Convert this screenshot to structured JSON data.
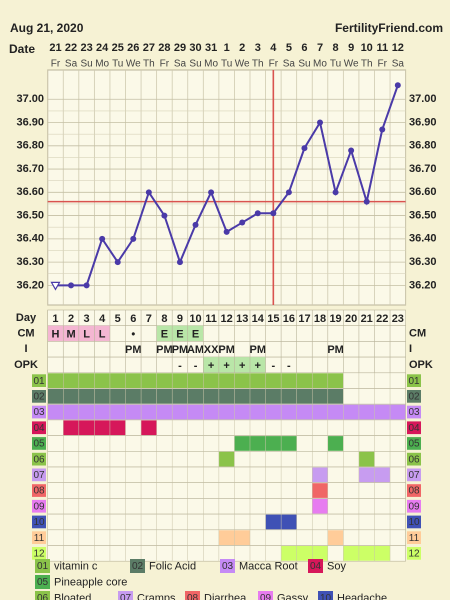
{
  "header": {
    "date": "Aug 21, 2020",
    "site": "FertilityFriend.com",
    "date_label": "Date"
  },
  "chart_data": {
    "type": "line",
    "categories": [
      "21",
      "22",
      "23",
      "24",
      "25",
      "26",
      "27",
      "28",
      "29",
      "30",
      "31",
      "1",
      "2",
      "3",
      "4",
      "5",
      "6",
      "7",
      "8",
      "9",
      "10",
      "11",
      "12"
    ],
    "weekdays": [
      "Fr",
      "Sa",
      "Su",
      "Mo",
      "Tu",
      "We",
      "Th",
      "Fr",
      "Sa",
      "Su",
      "Mo",
      "Tu",
      "We",
      "Th",
      "Fr",
      "Sa",
      "Su",
      "Mo",
      "Tu",
      "We",
      "Th",
      "Fr",
      "Sa"
    ],
    "values": [
      36.2,
      36.2,
      36.2,
      36.4,
      36.3,
      36.4,
      36.6,
      36.5,
      36.3,
      36.46,
      36.6,
      36.43,
      36.47,
      36.51,
      36.51,
      36.6,
      36.79,
      36.9,
      36.6,
      36.78,
      36.56,
      36.87,
      37.06
    ],
    "color": "#4a3aa8",
    "coverline": 36.56,
    "coverline_color": "#d9534f",
    "ovulation_day": 15,
    "ylim": [
      36.15,
      37.1
    ],
    "yticks": [
      {
        "value": 36.2,
        "label": "36.20"
      },
      {
        "value": 36.3,
        "label": "36.30"
      },
      {
        "value": 36.4,
        "label": "36.40"
      },
      {
        "value": 36.5,
        "label": "36.50"
      },
      {
        "value": 36.6,
        "label": "36.60"
      },
      {
        "value": 36.7,
        "label": "36.70"
      },
      {
        "value": 36.8,
        "label": "36.80"
      },
      {
        "value": 36.9,
        "label": "36.90"
      },
      {
        "value": 37,
        "label": "37.00"
      }
    ],
    "grid": true
  },
  "table": {
    "row_labels": {
      "day": "Day",
      "cm": "CM",
      "i": "I",
      "opk": "OPK"
    },
    "days": [
      1,
      2,
      3,
      4,
      5,
      6,
      7,
      8,
      9,
      10,
      11,
      12,
      13,
      14,
      15,
      16,
      17,
      18,
      19,
      20,
      21,
      22,
      23
    ],
    "cm": [
      "H",
      "M",
      "L",
      "L",
      null,
      "•",
      null,
      "E",
      "E",
      "E",
      null,
      null,
      null,
      null,
      null,
      null,
      null,
      null,
      null,
      null,
      null,
      null,
      null
    ],
    "cm_colors": {
      "H": "#f4b6d2",
      "M": "#f4b6d2",
      "L": "#f4b6d2",
      "E": "#b9e6a8"
    },
    "i": [
      null,
      null,
      null,
      null,
      null,
      "PM",
      null,
      "PM",
      "PM",
      "AM",
      "XX",
      "PM",
      null,
      "PM",
      null,
      null,
      null,
      null,
      "PM",
      null,
      null,
      null,
      null
    ],
    "opk": [
      null,
      null,
      null,
      null,
      null,
      null,
      null,
      null,
      "-",
      "-",
      "+",
      "+",
      "+",
      "+",
      "-",
      "-",
      null,
      null,
      null,
      null,
      null,
      null,
      null
    ],
    "opk_color": "#b9e6a8",
    "custom_rows": [
      {
        "code": "01",
        "label": "vitamin c",
        "color": "#8bc34a",
        "days": [
          1,
          2,
          3,
          4,
          5,
          6,
          7,
          8,
          9,
          10,
          11,
          12,
          13,
          14,
          15,
          16,
          17,
          18,
          19
        ]
      },
      {
        "code": "02",
        "label": "Folic Acid",
        "color": "#5b7c66",
        "days": [
          1,
          2,
          3,
          4,
          5,
          6,
          7,
          8,
          9,
          10,
          11,
          12,
          13,
          14,
          15,
          16,
          17,
          18,
          19
        ]
      },
      {
        "code": "03",
        "label": "Macca Root",
        "color": "#c58af5",
        "days": [
          1,
          2,
          3,
          4,
          5,
          6,
          7,
          8,
          9,
          10,
          11,
          12,
          13,
          14,
          15,
          16,
          17,
          18,
          19,
          20,
          21,
          22,
          23
        ]
      },
      {
        "code": "04",
        "label": "Soy",
        "color": "#d6175a",
        "days": [
          2,
          3,
          4,
          5,
          7
        ]
      },
      {
        "code": "05",
        "label": "Pineapple core",
        "color": "#4caf50",
        "days": [
          13,
          14,
          15,
          16,
          19
        ]
      },
      {
        "code": "06",
        "label": "Bloated",
        "color": "#8bc34a",
        "days": [
          12,
          21
        ]
      },
      {
        "code": "07",
        "label": "Cramps",
        "color": "#c79cf0",
        "days": [
          18,
          21,
          22
        ]
      },
      {
        "code": "08",
        "label": "Diarrhea",
        "color": "#f06666",
        "days": [
          18
        ]
      },
      {
        "code": "09",
        "label": "Gassy",
        "color": "#e77cf0",
        "days": [
          18
        ]
      },
      {
        "code": "10",
        "label": "Headache",
        "color": "#3f51b5",
        "days": [
          15,
          16
        ]
      },
      {
        "code": "11",
        "color": "#ffcc99",
        "days": [
          12,
          13,
          19
        ]
      },
      {
        "code": "12",
        "color": "#ccff66",
        "days": [
          16,
          17,
          18,
          20,
          21,
          22
        ]
      }
    ]
  }
}
